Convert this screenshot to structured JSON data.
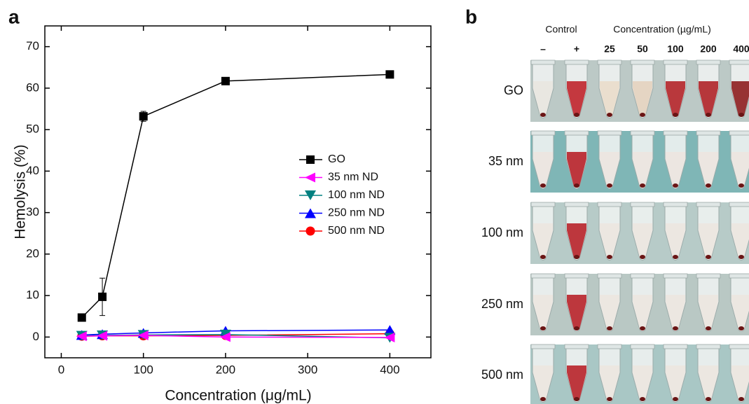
{
  "chart_data": {
    "type": "line",
    "panel_label": "a",
    "x_label": "Concentration (μg/mL)",
    "y_label": "Hemolysis (%)",
    "xlim": [
      -20,
      450
    ],
    "ylim": [
      -5,
      75
    ],
    "xticks": [
      0,
      100,
      200,
      300,
      400
    ],
    "yticks": [
      0,
      10,
      20,
      30,
      40,
      50,
      60,
      70
    ],
    "legend": "center right",
    "x": [
      25,
      50,
      100,
      200,
      400
    ],
    "series": [
      {
        "name": "GO",
        "color": "#000000",
        "marker": "square",
        "values": [
          4.7,
          9.7,
          53.2,
          61.7,
          63.3
        ],
        "errors": [
          null,
          4.5,
          1.2,
          null,
          null
        ]
      },
      {
        "name": "35 nm ND",
        "color": "#ff00ff",
        "marker": "triangle-left",
        "values": [
          0.2,
          0.3,
          0.4,
          0.0,
          -0.1
        ]
      },
      {
        "name": "100 nm ND",
        "color": "#008080",
        "marker": "triangle-down",
        "values": [
          0.3,
          0.4,
          0.5,
          0.6,
          -0.2
        ]
      },
      {
        "name": "250 nm ND",
        "color": "#0000ff",
        "marker": "triangle-up",
        "values": [
          0.5,
          0.7,
          1.0,
          1.5,
          1.7
        ]
      },
      {
        "name": "500 nm ND",
        "color": "#ff0000",
        "marker": "circle",
        "values": [
          0.2,
          0.3,
          0.3,
          0.4,
          0.8
        ]
      }
    ]
  },
  "photo_panel": {
    "panel_label": "b",
    "control_header": "Control",
    "concentration_header": "Concentration (µg/mL)",
    "columns": [
      "–",
      "+",
      "25",
      "50",
      "100",
      "200",
      "400"
    ],
    "rows": [
      "GO",
      "35 nm",
      "100 nm",
      "250 nm",
      "500 nm"
    ]
  }
}
